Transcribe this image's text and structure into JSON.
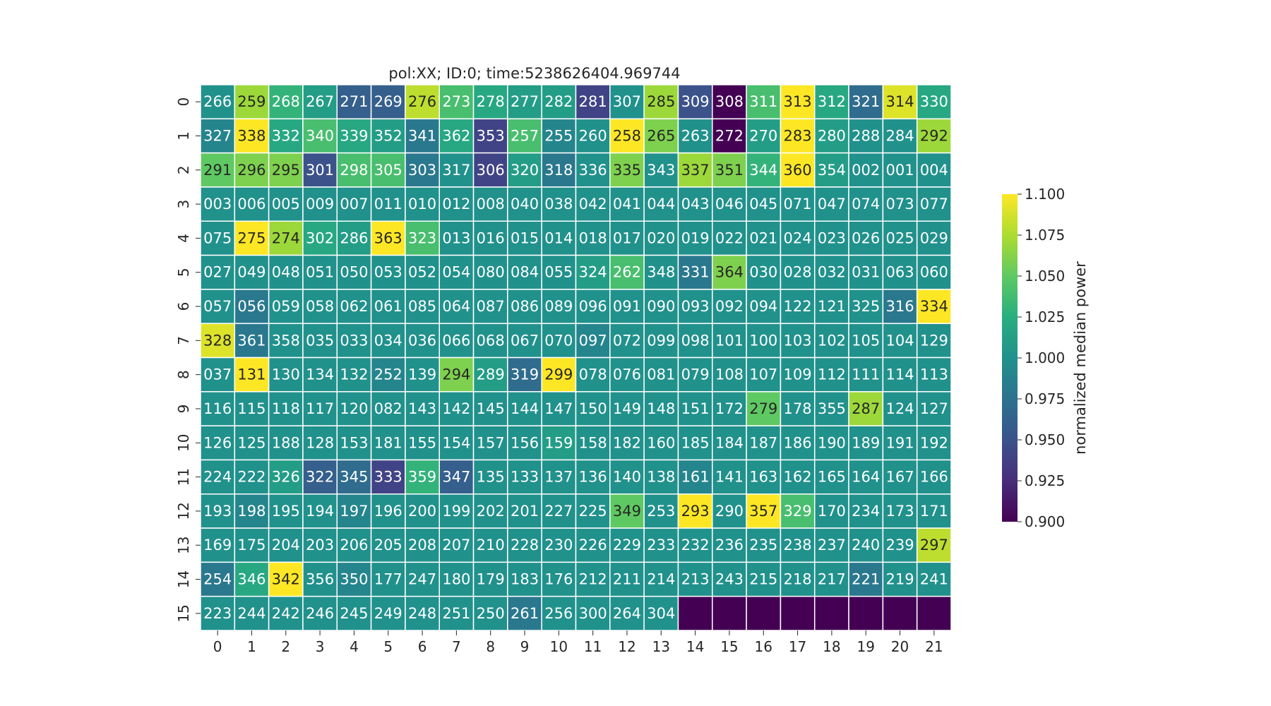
{
  "chart_data": {
    "type": "heatmap",
    "title": "pol:XX; ID:0; time:5238626404.969744",
    "rows": [
      "0",
      "1",
      "2",
      "3",
      "4",
      "5",
      "6",
      "7",
      "8",
      "9",
      "10",
      "11",
      "12",
      "13",
      "14",
      "15"
    ],
    "columns": [
      "0",
      "1",
      "2",
      "3",
      "4",
      "5",
      "6",
      "7",
      "8",
      "9",
      "10",
      "11",
      "12",
      "13",
      "14",
      "15",
      "16",
      "17",
      "18",
      "19",
      "20",
      "21"
    ],
    "cell_labels": [
      [
        "266",
        "259",
        "268",
        "267",
        "271",
        "269",
        "276",
        "273",
        "278",
        "277",
        "282",
        "281",
        "307",
        "285",
        "309",
        "308",
        "311",
        "313",
        "312",
        "321",
        "314",
        "330"
      ],
      [
        "327",
        "338",
        "332",
        "340",
        "339",
        "352",
        "341",
        "362",
        "353",
        "257",
        "255",
        "260",
        "258",
        "265",
        "263",
        "272",
        "270",
        "283",
        "280",
        "288",
        "284",
        "292"
      ],
      [
        "291",
        "296",
        "295",
        "301",
        "298",
        "305",
        "303",
        "317",
        "306",
        "320",
        "318",
        "336",
        "335",
        "343",
        "337",
        "351",
        "344",
        "360",
        "354",
        "002",
        "001",
        "004"
      ],
      [
        "003",
        "006",
        "005",
        "009",
        "007",
        "011",
        "010",
        "012",
        "008",
        "040",
        "038",
        "042",
        "041",
        "044",
        "043",
        "046",
        "045",
        "071",
        "047",
        "074",
        "073",
        "077"
      ],
      [
        "075",
        "275",
        "274",
        "302",
        "286",
        "363",
        "323",
        "013",
        "016",
        "015",
        "014",
        "018",
        "017",
        "020",
        "019",
        "022",
        "021",
        "024",
        "023",
        "026",
        "025",
        "029"
      ],
      [
        "027",
        "049",
        "048",
        "051",
        "050",
        "053",
        "052",
        "054",
        "080",
        "084",
        "055",
        "324",
        "262",
        "348",
        "331",
        "364",
        "030",
        "028",
        "032",
        "031",
        "063",
        "060"
      ],
      [
        "057",
        "056",
        "059",
        "058",
        "062",
        "061",
        "085",
        "064",
        "087",
        "086",
        "089",
        "096",
        "091",
        "090",
        "093",
        "092",
        "094",
        "122",
        "121",
        "325",
        "316",
        "334"
      ],
      [
        "328",
        "361",
        "358",
        "035",
        "033",
        "034",
        "036",
        "066",
        "068",
        "067",
        "070",
        "097",
        "072",
        "099",
        "098",
        "101",
        "100",
        "103",
        "102",
        "105",
        "104",
        "129"
      ],
      [
        "037",
        "131",
        "130",
        "134",
        "132",
        "252",
        "139",
        "294",
        "289",
        "319",
        "299",
        "078",
        "076",
        "081",
        "079",
        "108",
        "107",
        "109",
        "112",
        "111",
        "114",
        "113"
      ],
      [
        "116",
        "115",
        "118",
        "117",
        "120",
        "082",
        "143",
        "142",
        "145",
        "144",
        "147",
        "150",
        "149",
        "148",
        "151",
        "172",
        "279",
        "178",
        "355",
        "287",
        "124",
        "127"
      ],
      [
        "126",
        "125",
        "188",
        "128",
        "153",
        "181",
        "155",
        "154",
        "157",
        "156",
        "159",
        "158",
        "182",
        "160",
        "185",
        "184",
        "187",
        "186",
        "190",
        "189",
        "191",
        "192"
      ],
      [
        "224",
        "222",
        "326",
        "322",
        "345",
        "333",
        "359",
        "347",
        "135",
        "133",
        "137",
        "136",
        "140",
        "138",
        "161",
        "141",
        "163",
        "162",
        "165",
        "164",
        "167",
        "166"
      ],
      [
        "193",
        "198",
        "195",
        "194",
        "197",
        "196",
        "200",
        "199",
        "202",
        "201",
        "227",
        "225",
        "349",
        "253",
        "293",
        "290",
        "357",
        "329",
        "170",
        "234",
        "173",
        "171"
      ],
      [
        "169",
        "175",
        "204",
        "203",
        "206",
        "205",
        "208",
        "207",
        "210",
        "228",
        "230",
        "226",
        "229",
        "233",
        "232",
        "236",
        "235",
        "238",
        "237",
        "240",
        "239",
        "297"
      ],
      [
        "254",
        "346",
        "342",
        "356",
        "350",
        "177",
        "247",
        "180",
        "179",
        "183",
        "176",
        "212",
        "211",
        "214",
        "213",
        "243",
        "215",
        "218",
        "217",
        "221",
        "219",
        "241"
      ],
      [
        "223",
        "244",
        "242",
        "246",
        "245",
        "249",
        "248",
        "251",
        "250",
        "261",
        "256",
        "300",
        "264",
        "304",
        "",
        "",
        "",
        "",
        "",
        "",
        "",
        ""
      ]
    ],
    "values": [
      [
        1.0,
        1.07,
        1.03,
        1.01,
        0.96,
        0.96,
        1.08,
        1.04,
        1.02,
        1.01,
        1.01,
        0.94,
        1.0,
        1.07,
        0.95,
        0.9,
        1.04,
        1.1,
        1.02,
        0.97,
        1.09,
        1.02
      ],
      [
        0.99,
        1.1,
        1.02,
        1.04,
        1.02,
        1.01,
        0.98,
        1.02,
        0.94,
        1.04,
        0.99,
        1.0,
        1.1,
        1.06,
        1.0,
        0.9,
        1.01,
        1.1,
        1.01,
        1.0,
        1.0,
        1.07
      ],
      [
        1.05,
        1.06,
        1.06,
        0.95,
        1.04,
        1.04,
        0.98,
        1.0,
        0.94,
        1.01,
        0.98,
        1.0,
        1.06,
        1.0,
        1.07,
        1.06,
        1.03,
        1.1,
        1.01,
        1.0,
        1.0,
        1.0
      ],
      [
        1.0,
        1.0,
        1.0,
        1.0,
        1.0,
        1.0,
        1.0,
        1.0,
        1.0,
        1.0,
        1.0,
        1.0,
        1.0,
        1.0,
        1.0,
        1.0,
        1.0,
        1.0,
        1.0,
        1.0,
        1.0,
        1.0
      ],
      [
        1.0,
        1.1,
        1.07,
        1.02,
        1.01,
        1.1,
        1.04,
        1.0,
        1.0,
        1.0,
        1.0,
        1.0,
        1.0,
        1.0,
        1.0,
        1.0,
        1.0,
        1.0,
        1.0,
        1.0,
        1.0,
        1.0
      ],
      [
        1.0,
        1.0,
        1.0,
        1.0,
        1.0,
        1.0,
        1.0,
        1.0,
        1.0,
        1.0,
        1.0,
        1.01,
        1.04,
        1.0,
        0.98,
        1.06,
        1.0,
        1.0,
        1.0,
        1.0,
        1.0,
        1.0
      ],
      [
        1.0,
        0.98,
        1.0,
        1.0,
        1.0,
        1.0,
        1.0,
        1.0,
        1.0,
        1.0,
        1.0,
        1.0,
        1.0,
        1.0,
        1.0,
        1.0,
        1.0,
        1.0,
        1.0,
        1.0,
        0.98,
        1.1
      ],
      [
        1.09,
        0.98,
        1.0,
        1.0,
        1.0,
        1.0,
        1.0,
        1.0,
        1.0,
        1.0,
        1.0,
        0.99,
        1.0,
        1.0,
        1.0,
        1.0,
        1.0,
        1.0,
        1.0,
        1.0,
        1.0,
        1.0
      ],
      [
        1.0,
        1.1,
        1.0,
        1.0,
        1.0,
        0.99,
        1.0,
        1.06,
        1.01,
        0.97,
        1.1,
        1.0,
        1.0,
        1.0,
        1.0,
        1.0,
        1.0,
        1.0,
        1.0,
        1.0,
        1.0,
        1.0
      ],
      [
        1.0,
        1.0,
        1.0,
        1.0,
        1.0,
        1.0,
        1.0,
        1.0,
        1.0,
        1.0,
        1.0,
        1.0,
        1.0,
        1.0,
        1.0,
        1.0,
        1.05,
        1.0,
        1.0,
        1.07,
        1.0,
        1.0
      ],
      [
        1.0,
        1.0,
        1.0,
        1.0,
        1.0,
        1.0,
        1.0,
        1.0,
        1.0,
        1.0,
        1.01,
        1.0,
        1.0,
        1.0,
        1.0,
        1.0,
        1.0,
        1.0,
        1.0,
        1.0,
        1.0,
        1.0
      ],
      [
        1.0,
        1.0,
        1.01,
        0.96,
        0.97,
        0.94,
        1.03,
        0.96,
        1.0,
        1.0,
        1.0,
        1.0,
        1.0,
        1.0,
        0.99,
        1.0,
        1.0,
        1.0,
        1.0,
        1.0,
        1.0,
        1.0
      ],
      [
        1.0,
        0.99,
        1.0,
        1.0,
        0.99,
        1.0,
        1.0,
        1.0,
        1.0,
        1.0,
        1.0,
        1.0,
        1.05,
        1.0,
        1.1,
        1.0,
        1.1,
        1.04,
        1.0,
        1.0,
        1.0,
        1.0
      ],
      [
        1.0,
        1.0,
        1.0,
        1.0,
        1.0,
        1.0,
        1.0,
        1.0,
        1.0,
        1.0,
        1.0,
        1.0,
        1.0,
        1.0,
        1.0,
        1.0,
        1.0,
        1.0,
        1.0,
        1.0,
        1.0,
        1.08
      ],
      [
        0.98,
        1.02,
        1.1,
        1.0,
        0.99,
        1.0,
        1.0,
        1.0,
        1.0,
        1.0,
        1.0,
        1.0,
        1.0,
        1.0,
        1.0,
        1.0,
        1.0,
        1.0,
        1.0,
        0.98,
        1.0,
        1.0
      ],
      [
        1.0,
        1.0,
        1.0,
        1.0,
        1.0,
        1.0,
        1.0,
        1.0,
        1.0,
        0.98,
        1.0,
        1.0,
        1.0,
        1.0,
        0.9,
        0.9,
        0.9,
        0.9,
        0.9,
        0.9,
        0.9,
        0.9
      ]
    ],
    "colorbar": {
      "label": "normalized median power",
      "min": 0.9,
      "max": 1.1,
      "ticks": [
        "0.900",
        "0.925",
        "0.950",
        "0.975",
        "1.000",
        "1.025",
        "1.050",
        "1.075",
        "1.100"
      ],
      "colormap": "viridis",
      "low_color": "#440154",
      "high_color": "#fde725"
    },
    "grid": false
  }
}
